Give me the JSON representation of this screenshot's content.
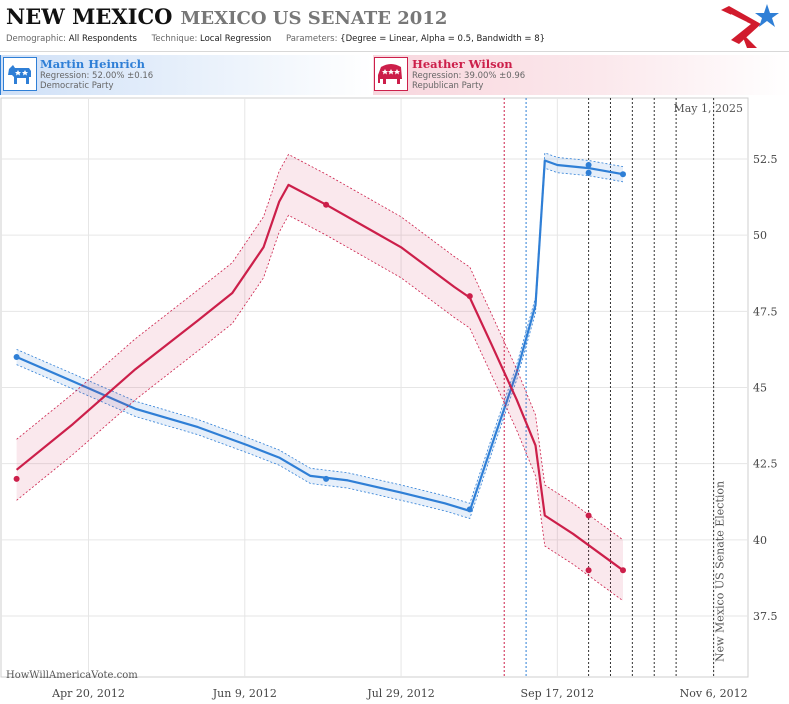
{
  "header": {
    "state": "NEW MEXICO",
    "race": "MEXICO US SENATE 2012",
    "demographic_label": "Demographic:",
    "demographic_value": "All Respondents",
    "technique_label": "Technique:",
    "technique_value": "Local Regression",
    "parameters_label": "Parameters:",
    "parameters_value": "{Degree = Linear, Alpha = 0.5, Bandwidth = 8}"
  },
  "legend": {
    "dem": {
      "name": "Martin Heinrich",
      "regression": "Regression: 52.00% ±0.16",
      "party": "Democratic Party",
      "color": "#2f7fd6"
    },
    "rep": {
      "name": "Heather Wilson",
      "regression": "Regression: 39.00% ±0.96",
      "party": "Republican Party",
      "color": "#cc1f4a"
    }
  },
  "watermark": "HowWillAmericaVote.com",
  "date_label": "May 1, 2025",
  "election_label": "New Mexico US Senate Election",
  "chart_data": {
    "type": "line",
    "title": "",
    "xlabel": "",
    "ylabel": "",
    "x_range": [
      "2012-03-23",
      "2012-11-17"
    ],
    "ylim": [
      35.5,
      54.5
    ],
    "y_ticks": [
      37.5,
      40,
      42.5,
      45,
      47.5,
      50,
      52.5
    ],
    "y_tick_labels": [
      "37.5",
      "40",
      "42.5",
      "45",
      "47.5",
      "50",
      "52.5"
    ],
    "x_ticks": [
      "2012-04-20",
      "2012-06-09",
      "2012-07-29",
      "2012-09-17",
      "2012-11-06"
    ],
    "x_tick_labels": [
      "Apr 20, 2012",
      "Jun 9, 2012",
      "Jul 29, 2012",
      "Sep 17, 2012",
      "Nov 6, 2012"
    ],
    "grid": true,
    "vertical_markers": [
      {
        "date": "2012-08-31",
        "color": "#cc1f4a"
      },
      {
        "date": "2012-09-07",
        "color": "#2f7fd6"
      },
      {
        "date": "2012-09-27",
        "color": "#333333"
      },
      {
        "date": "2012-10-04",
        "color": "#333333"
      },
      {
        "date": "2012-10-11",
        "color": "#333333"
      },
      {
        "date": "2012-10-18",
        "color": "#333333"
      },
      {
        "date": "2012-10-25",
        "color": "#333333"
      },
      {
        "date": "2012-11-06",
        "color": "#333333"
      }
    ],
    "series": [
      {
        "name": "Martin Heinrich",
        "color": "#2f7fd6",
        "band": 0.25,
        "line": [
          [
            "2012-03-28",
            46.0
          ],
          [
            "2012-04-15",
            45.2
          ],
          [
            "2012-05-05",
            44.3
          ],
          [
            "2012-05-25",
            43.7
          ],
          [
            "2012-06-10",
            43.1
          ],
          [
            "2012-06-20",
            42.7
          ],
          [
            "2012-06-30",
            42.1
          ],
          [
            "2012-07-12",
            41.95
          ],
          [
            "2012-07-29",
            41.55
          ],
          [
            "2012-08-12",
            41.2
          ],
          [
            "2012-08-20",
            40.95
          ],
          [
            "2012-08-28",
            43.4
          ],
          [
            "2012-09-04",
            45.5
          ],
          [
            "2012-09-10",
            47.7
          ],
          [
            "2012-09-13",
            52.45
          ],
          [
            "2012-09-17",
            52.3
          ],
          [
            "2012-09-27",
            52.2
          ],
          [
            "2012-10-08",
            52.0
          ]
        ],
        "points": [
          [
            "2012-03-28",
            46.0
          ],
          [
            "2012-07-05",
            42.0
          ],
          [
            "2012-08-20",
            41.0
          ],
          [
            "2012-09-27",
            52.3
          ],
          [
            "2012-09-27",
            52.05
          ],
          [
            "2012-10-08",
            52.0
          ]
        ]
      },
      {
        "name": "Heather Wilson",
        "color": "#cc1f4a",
        "band": 1.0,
        "line": [
          [
            "2012-03-28",
            42.3
          ],
          [
            "2012-04-15",
            43.8
          ],
          [
            "2012-05-05",
            45.6
          ],
          [
            "2012-05-25",
            47.2
          ],
          [
            "2012-06-05",
            48.1
          ],
          [
            "2012-06-15",
            49.6
          ],
          [
            "2012-06-20",
            51.1
          ],
          [
            "2012-06-23",
            51.65
          ],
          [
            "2012-07-05",
            51.0
          ],
          [
            "2012-07-29",
            49.6
          ],
          [
            "2012-08-15",
            48.3
          ],
          [
            "2012-08-20",
            47.95
          ],
          [
            "2012-08-27",
            46.4
          ],
          [
            "2012-09-04",
            44.6
          ],
          [
            "2012-09-10",
            43.1
          ],
          [
            "2012-09-13",
            40.8
          ],
          [
            "2012-09-22",
            40.2
          ],
          [
            "2012-10-08",
            39.0
          ]
        ],
        "points": [
          [
            "2012-03-28",
            42.0
          ],
          [
            "2012-07-05",
            51.0
          ],
          [
            "2012-08-20",
            48.0
          ],
          [
            "2012-09-27",
            40.8
          ],
          [
            "2012-09-27",
            39.0
          ],
          [
            "2012-10-08",
            39.0
          ]
        ]
      }
    ]
  }
}
